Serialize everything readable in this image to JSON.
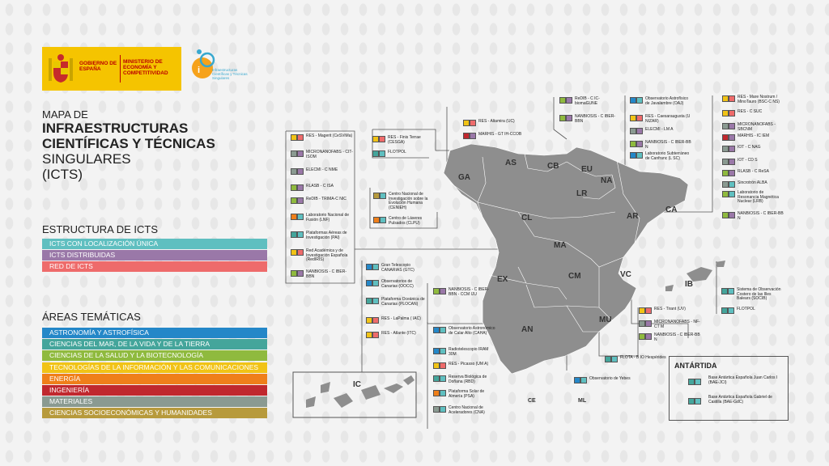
{
  "logos": {
    "gobierno": "GOBIERNO DE ESPAÑA",
    "ministerio": "MINISTERIO DE ECONOMÍA Y COMPETITIVIDAD",
    "icts": "Infraestructuras Científicas y Técnicas Singulares"
  },
  "title": {
    "line0": "MAPA DE",
    "line1": "INFRAESTRUCTURAS",
    "line2": "CIENTÍFICAS Y TÉCNICAS",
    "line3": "SINGULARES",
    "line4": "(ICTS)"
  },
  "estructura": {
    "heading": "ESTRUCTURA DE ICTS",
    "items": [
      {
        "label": "ICTS CON LOCALIZACIÓN ÚNICA",
        "color": "#5fbfc0"
      },
      {
        "label": "ICTS DISTRIBUIDAS",
        "color": "#9a78a8"
      },
      {
        "label": "RED DE ICTS",
        "color": "#ee6b6b"
      }
    ]
  },
  "areas": {
    "heading": "ÁREAS TEMÁTICAS",
    "items": [
      {
        "label": "ASTRONOMÍA Y ASTROFÍSICA",
        "color": "#2487c8"
      },
      {
        "label": "CIENCIAS DEL MAR, DE LA VIDA Y DE LA TIERRA",
        "color": "#44a59b"
      },
      {
        "label": "CIENCIAS DE LA SALUD Y LA BIOTECNOLOGÍA",
        "color": "#8fba3e"
      },
      {
        "label": "TECNOLOGÍAS DE LA INFORMACIÓN Y LAS COMUNICACIONES",
        "color": "#f1c316"
      },
      {
        "label": "ENERGÍA",
        "color": "#ef7f1a"
      },
      {
        "label": "INGENIERÍA",
        "color": "#c0282e"
      },
      {
        "label": "MATERIALES",
        "color": "#8a9a91"
      },
      {
        "label": "CIENCIAS SOCIOECONÓMICAS Y HUMANIDADES",
        "color": "#b79a3c"
      }
    ]
  },
  "regions": [
    "GA",
    "AS",
    "CB",
    "EU",
    "NA",
    "LR",
    "AR",
    "CA",
    "CL",
    "MA",
    "EX",
    "CM",
    "VC",
    "IB",
    "AN",
    "MU",
    "IC",
    "CE",
    "ML"
  ],
  "antartida": {
    "heading": "ANTÁRTIDA",
    "items": [
      "Base Antártica Española Juan Carlos I (BAE-JCI)",
      "Base Antártica Española Gabriel de Castilla (BAE-GdC)"
    ]
  },
  "labels": {
    "l01": "RES - Magerit (CeSViMa)",
    "l02": "MICRONANOFABS - CIT- ISOM",
    "l03": "ELECMI - C NME",
    "l04": "RLASB - C ISA",
    "l05": "ReDIB - TRIMA-C NIC",
    "l06": "Laboratorio Nacional de Fusión (LNF)",
    "l07": "Plataformas Aéreas de Investigación (PAI)",
    "l08": "Red Académica y de Investigación Española (RedIRIS)",
    "l09": "NANBIOSIS - C IBER-BBN",
    "l10": "RES - Finis Terrae (CESGA)",
    "l11": "FLOTPOL",
    "l12": "RES - Altamira (UC)",
    "l13": "MARHIS - GT IH-CCOB",
    "l14": "ReDIB - C IC-biomaGUNE",
    "l15": "NANBIOSIS - C IBER-BBN",
    "l16": "Observatorio Astrofísico de Javalambre (OAJ)",
    "l17": "RES - Caesaraugusta (U NIZAR)",
    "l18": "ELECMI - LM A",
    "l19": "NANBIOSIS - C IBER-BB N",
    "l20": "Laboratorio Subterráneo de Canfranc (L SC)",
    "l21": "RES - Mare Nostrum / MinoTauro (BSC-C NS)",
    "l22": "RES - C SUC",
    "l23": "MICRONANOFABS - SBCNM",
    "l24": "MARHIS - IC IEM",
    "l25": "IOT - C NAG",
    "l26": "IOT - CD S",
    "l27": "RLASB - C ReSA",
    "l28": "Sincrotrón ALBA",
    "l29": "Laboratorio de Resonancia Magnética Nuclear (LRB)",
    "l30": "NANBIOSIS - C IBER-BB N",
    "l31": "Centro Nacional de Investigación sobre la Evolución Humana (CENIEH)",
    "l32": "Centro de Láseres Pulsados (CLPU)",
    "l33": "Gran Telescopio CANARIAS (GTC)",
    "l34": "Observatorios de Canarias (OOCC)",
    "l35": "Plataforma Oceánica de Canarias (PLOCAN)",
    "l36": "RES - LaPalma ( IAC)",
    "l37": "RES - Atlante (ITC)",
    "l38": "NANBIOSIS - C IBER-BBN - CCM IJU",
    "l39": "Observatorio Astronómico de Calar Alto (CAHA)",
    "l40": "Radiotelescopio IRAM 30M",
    "l41": "RES - Picasso (UM A)",
    "l42": "Reserva Biológica de Doñana (RBD)",
    "l43": "Plataforma Solar de Almería (PSA)",
    "l44": "Centro Nacional de Aceleradores (CNA)",
    "l45": "Observatorio de Yebes",
    "l46": "FLOTA - B IO Hespérides",
    "l47": "RES - Tirant (UV)",
    "l48": "MICRONANOFABS - NF-CT M",
    "l49": "NANBIOSIS - C IBER-BB N",
    "l50": "Sistema de Observación Costero de las Illes Balears (SOCIB)",
    "l51": "FLOTPOL"
  }
}
